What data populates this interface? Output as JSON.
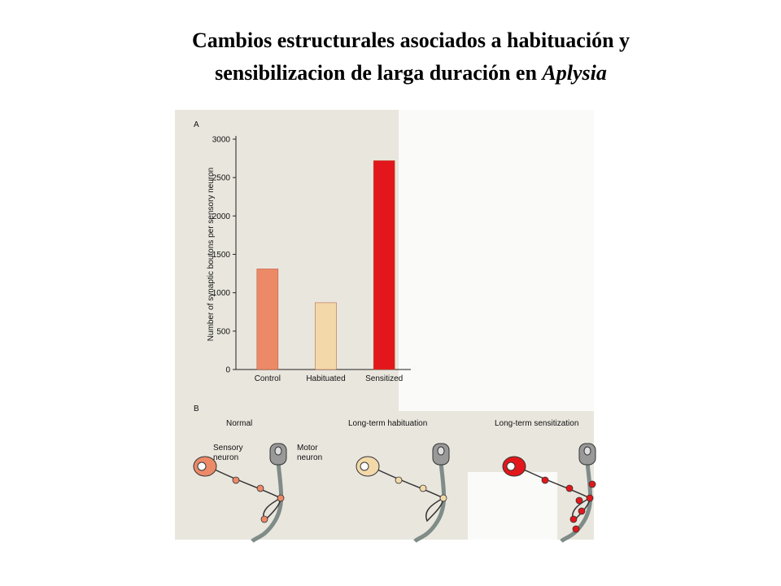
{
  "slide": {
    "title_line1": "Cambios estructurales asociados a habituación y",
    "title_line2": "sensibilizacion de larga duración en",
    "title_italic": "Aplysia"
  },
  "chart_data": {
    "type": "bar",
    "panel_label": "A",
    "y_label": "Number of synaptic boutons per sensory neuron",
    "categories": [
      "Control",
      "Habituated",
      "Sensitized"
    ],
    "values": [
      1310,
      870,
      2720
    ],
    "colors": [
      "#ec8a68",
      "#f3d9aa",
      "#e3171b"
    ],
    "ylim": [
      0,
      3000
    ],
    "yticks": [
      0,
      500,
      1000,
      1500,
      2000,
      2500,
      3000
    ],
    "grid": false
  },
  "panel_b": {
    "panel_label": "B",
    "conditions": [
      "Normal",
      "Long-term habituation",
      "Long-term sensitization"
    ],
    "sensory_label": [
      "Sensory",
      "neuron"
    ],
    "motor_label": [
      "Motor",
      "neuron"
    ]
  }
}
